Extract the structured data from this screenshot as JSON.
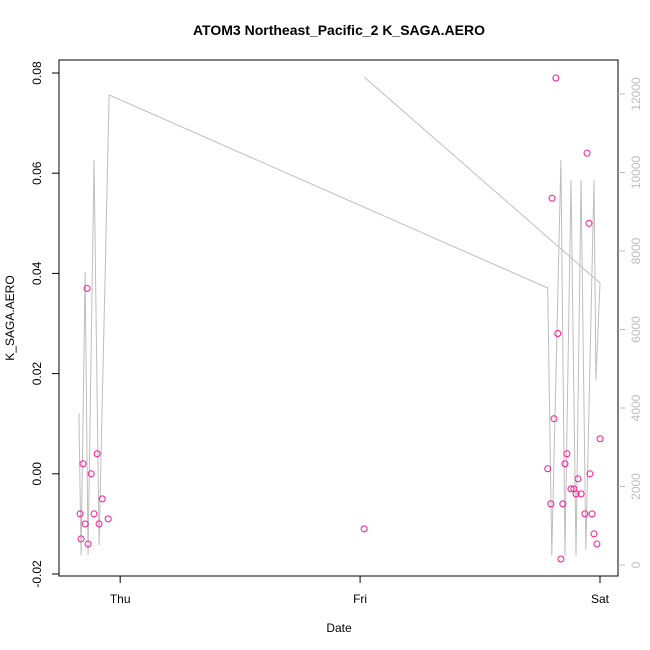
{
  "chart_data": {
    "type": "scatter",
    "title": "ATOM3 Northeast_Pacific_2 K_SAGA.AERO",
    "x_label": "Date",
    "y_label": "K_SAGA.AERO",
    "xlim": [
      -0.255,
      2.075
    ],
    "xticks": [
      {
        "value": 0,
        "label": "Thu"
      },
      {
        "value": 1,
        "label": "Fri"
      },
      {
        "value": 2,
        "label": "Sat"
      }
    ],
    "ylim": [
      -0.0204,
      0.0826
    ],
    "yticks": [
      {
        "value": -0.02,
        "label": "-0.02"
      },
      {
        "value": 0,
        "label": "0.00"
      },
      {
        "value": 0.02,
        "label": "0.02"
      },
      {
        "value": 0.04,
        "label": "0.04"
      },
      {
        "value": 0.06,
        "label": "0.06"
      },
      {
        "value": 0.08,
        "label": "0.08"
      }
    ],
    "y2lim": [
      -280,
      12866
    ],
    "y2ticks": [
      0,
      2000,
      4000,
      6000,
      8000,
      10000,
      12000
    ],
    "series": [
      {
        "color": "#ff1493",
        "x": [
          -0.167,
          -0.163,
          -0.155,
          -0.146,
          -0.138,
          -0.134,
          -0.121,
          -0.109,
          -0.096,
          -0.088,
          -0.075,
          -0.05,
          1.017,
          1.782,
          1.795,
          1.8,
          1.808,
          1.816,
          1.824,
          1.837,
          1.845,
          1.854,
          1.862,
          1.879,
          1.891,
          1.9,
          1.908,
          1.921,
          1.937,
          1.946,
          1.954,
          1.958,
          1.967,
          1.975,
          1.987,
          2.0
        ],
        "values": [
          -0.008,
          -0.013,
          0.002,
          -0.01,
          0.037,
          -0.014,
          0.0,
          -0.008,
          0.004,
          -0.01,
          -0.005,
          -0.009,
          -0.011,
          0.001,
          -0.006,
          0.055,
          0.011,
          0.079,
          0.028,
          -0.017,
          -0.006,
          0.002,
          0.004,
          -0.003,
          -0.003,
          -0.004,
          -0.001,
          -0.004,
          -0.008,
          0.064,
          0.05,
          0.0,
          -0.008,
          -0.012,
          -0.014,
          0.007
        ]
      },
      {
        "type": "line",
        "color": "#bebebe",
        "axis": "y2",
        "x": [
          -0.172,
          -0.163,
          -0.146,
          -0.134,
          -0.109,
          -0.088,
          -0.046,
          1.782,
          1.799,
          1.837,
          1.854,
          1.879,
          1.9,
          1.921,
          1.941,
          1.975,
          1.983,
          2.0,
          1.017
        ],
        "values": [
          3870,
          250,
          7465,
          250,
          10320,
          510,
          11975,
          7057,
          250,
          10320,
          250,
          9810,
          250,
          9810,
          380,
          9810,
          4710,
          7185,
          12433
        ]
      }
    ]
  }
}
